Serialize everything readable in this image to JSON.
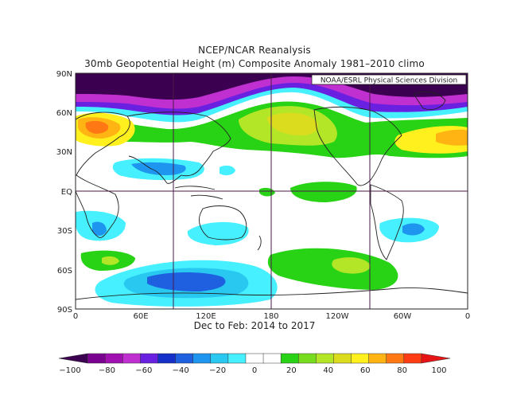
{
  "title_line1": "NCEP/NCAR Reanalysis",
  "title_line2": "30mb Geopotential Height (m) Composite Anomaly 1981–2010 climo",
  "subtitle": "Dec to Feb: 2014 to 2017",
  "credit": "NOAA/ESRL Physical Sciences Division",
  "lat_labels": [
    "90N",
    "60N",
    "30N",
    "EQ",
    "30S",
    "60S",
    "90S"
  ],
  "lon_labels": [
    "0",
    "60E",
    "120E",
    "180",
    "120W",
    "60W",
    "0"
  ],
  "colorbar": {
    "labels": [
      "−100",
      "−80",
      "−60",
      "−40",
      "−20",
      "0",
      "20",
      "40",
      "60",
      "80",
      "100"
    ],
    "colors": [
      "#3c0050",
      "#7a0090",
      "#a010b0",
      "#c030d0",
      "#6a20e0",
      "#1430c8",
      "#1e60e0",
      "#1e96f0",
      "#28c8f0",
      "#46f0ff",
      "#ffffff",
      "#ffffff",
      "#28d214",
      "#78dc1e",
      "#b4e628",
      "#dcdc1e",
      "#fff01e",
      "#ffb414",
      "#ff7814",
      "#ff3c14",
      "#e61414"
    ]
  },
  "colors": {
    "strong_negative": "#3c0050",
    "negative_purple": "#a010b0",
    "negative_blue": "#1e60e0",
    "weak_negative": "#46f0ff",
    "weak_positive": "#28d214",
    "positive_yellow": "#fff01e",
    "positive_orange": "#ff7814",
    "positive_red": "#e61414"
  }
}
